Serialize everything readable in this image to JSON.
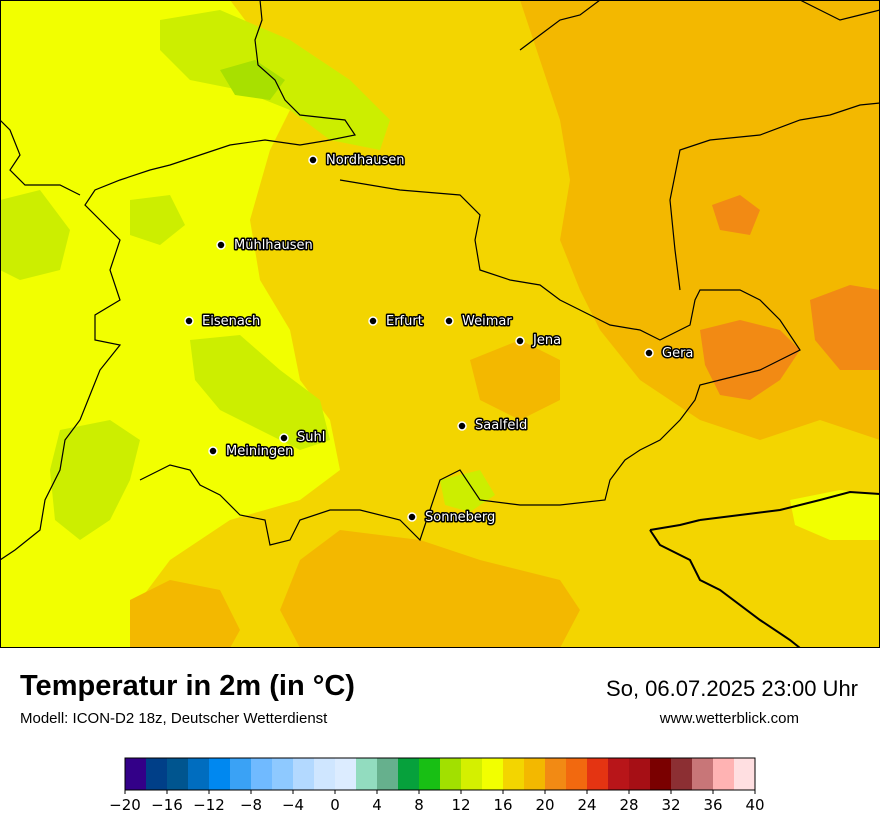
{
  "map": {
    "cities": [
      {
        "name": "Nordhausen"
      },
      {
        "name": "Mühlhausen"
      },
      {
        "name": "Eisenach"
      },
      {
        "name": "Erfurt"
      },
      {
        "name": "Weimar"
      },
      {
        "name": "Jena"
      },
      {
        "name": "Gera"
      },
      {
        "name": "Suhl"
      },
      {
        "name": "Meiningen"
      },
      {
        "name": "Saalfeld"
      },
      {
        "name": "Sonneberg"
      }
    ],
    "colors": {
      "lightgreen": "#ccee00",
      "green": "#a8e000",
      "yellow": "#f2ff00",
      "gold": "#f3d500",
      "orange": "#f3b800",
      "darkorange": "#f28a14",
      "border": "#000000"
    }
  },
  "footer": {
    "title": "Temperatur in 2m (in °C)",
    "model": "Modell: ICON-D2 18z, Deutscher Wetterdienst",
    "datetime": "So, 06.07.2025 23:00 Uhr",
    "website": "www.wetterblick.com"
  },
  "colorbar": {
    "colors": [
      "#330088",
      "#003f88",
      "#00558f",
      "#006dbf",
      "#0088f0",
      "#3aa2f5",
      "#70baff",
      "#8ec9ff",
      "#b3d9ff",
      "#cfe6ff",
      "#dcecff",
      "#92dcbf",
      "#66b08d",
      "#06a13c",
      "#18bf14",
      "#a2e000",
      "#d4f000",
      "#f2ff00",
      "#f3d500",
      "#f3b800",
      "#f28a14",
      "#f2690f",
      "#e43412",
      "#b81519",
      "#a60f15",
      "#7a0000",
      "#8c2f33",
      "#c87678",
      "#ffb3b3",
      "#ffdfe1"
    ],
    "ticks": [
      "−20",
      "−16",
      "−12",
      "−8",
      "−4",
      "0",
      "4",
      "8",
      "12",
      "16",
      "20",
      "24",
      "28",
      "32",
      "36",
      "40"
    ]
  }
}
